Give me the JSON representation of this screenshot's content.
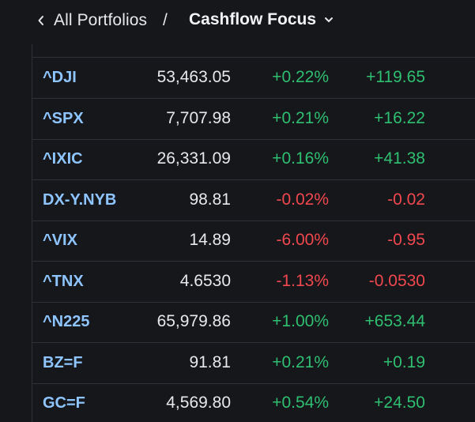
{
  "header": {
    "breadcrumb_label": "All Portfolios",
    "separator": "/",
    "title": "Cashflow Focus",
    "back_icon": "chevron-left-icon",
    "dropdown_icon": "chevron-down-icon"
  },
  "colors": {
    "symbol": "#8ec5ff",
    "positive": "#2fbf71",
    "negative": "#f0484e",
    "background": "#16171b"
  },
  "rows": [
    {
      "symbol": "^DJI",
      "price": "53,463.05",
      "pct": "+0.22%",
      "change": "+119.65",
      "dir": "up"
    },
    {
      "symbol": "^SPX",
      "price": "7,707.98",
      "pct": "+0.21%",
      "change": "+16.22",
      "dir": "up"
    },
    {
      "symbol": "^IXIC",
      "price": "26,331.09",
      "pct": "+0.16%",
      "change": "+41.38",
      "dir": "up"
    },
    {
      "symbol": "DX-Y.NYB",
      "price": "98.81",
      "pct": "-0.02%",
      "change": "-0.02",
      "dir": "down"
    },
    {
      "symbol": "^VIX",
      "price": "14.89",
      "pct": "-6.00%",
      "change": "-0.95",
      "dir": "down"
    },
    {
      "symbol": "^TNX",
      "price": "4.6530",
      "pct": "-1.13%",
      "change": "-0.0530",
      "dir": "down"
    },
    {
      "symbol": "^N225",
      "price": "65,979.86",
      "pct": "+1.00%",
      "change": "+653.44",
      "dir": "up"
    },
    {
      "symbol": "BZ=F",
      "price": "91.81",
      "pct": "+0.21%",
      "change": "+0.19",
      "dir": "up"
    },
    {
      "symbol": "GC=F",
      "price": "4,569.80",
      "pct": "+0.54%",
      "change": "+24.50",
      "dir": "up"
    }
  ]
}
